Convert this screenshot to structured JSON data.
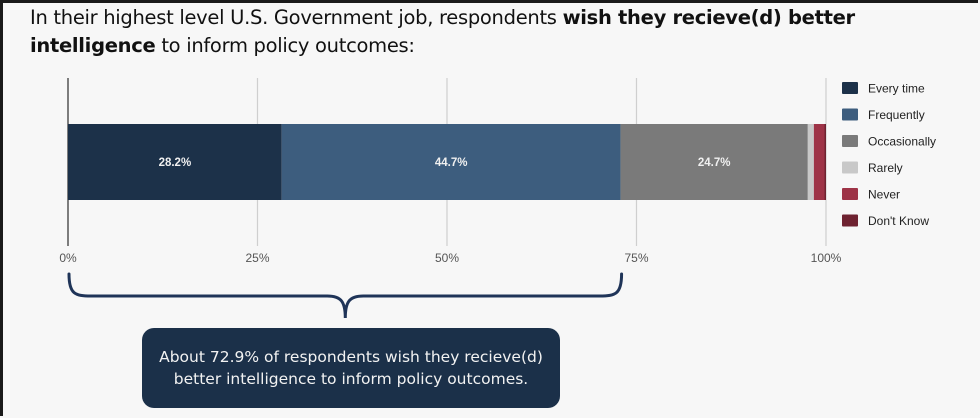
{
  "title": {
    "prefix": "In their highest level U.S. Government job, respondents ",
    "bold": "wish they recieve(d) better intelligence",
    "suffix": " to inform policy outcomes:"
  },
  "callout": {
    "text": "About 72.9% of respondents wish they recieve(d) better intelligence to inform policy outcomes."
  },
  "chart_data": {
    "type": "bar",
    "orientation": "horizontal",
    "stacked": true,
    "categories": [
      ""
    ],
    "series": [
      {
        "name": "Every time",
        "values": [
          28.2
        ],
        "color": "#1c3149",
        "label": "28.2%"
      },
      {
        "name": "Frequently",
        "values": [
          44.7
        ],
        "color": "#3d5d7e",
        "label": "44.7%"
      },
      {
        "name": "Occasionally",
        "values": [
          24.7
        ],
        "color": "#7a7a7a",
        "label": "24.7%"
      },
      {
        "name": "Rarely",
        "values": [
          0.8
        ],
        "color": "#c8c8c8",
        "label": ""
      },
      {
        "name": "Never",
        "values": [
          1.4
        ],
        "color": "#9e3347",
        "label": ""
      },
      {
        "name": "Don't Know",
        "values": [
          0.2
        ],
        "color": "#6e2230",
        "label": ""
      }
    ],
    "xlim": [
      0,
      100
    ],
    "xticks": [
      "0%",
      "25%",
      "50%",
      "75%",
      "100%"
    ],
    "xtick_values": [
      0,
      25,
      50,
      75,
      100
    ],
    "grid": true,
    "legend": "right",
    "annotation": {
      "brace_from": 0,
      "brace_to": 72.9
    }
  }
}
